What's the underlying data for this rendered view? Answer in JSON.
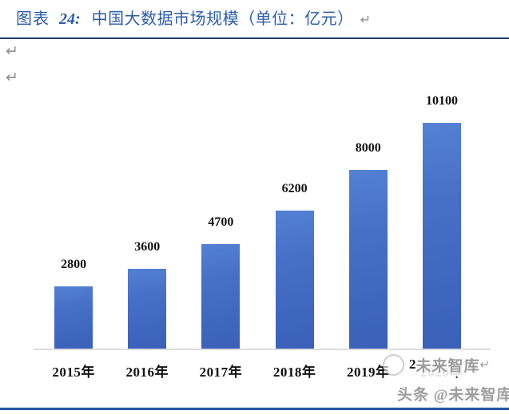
{
  "title": {
    "prefix": "图表",
    "number": "24:",
    "text": "中国大数据市场规模（单位：亿元）",
    "return_mark": "↵"
  },
  "paragraph_marks": {
    "first": "↵",
    "second": "↵"
  },
  "chart_data": {
    "type": "bar",
    "title": "中国大数据市场规模",
    "unit": "亿元",
    "categories": [
      "2015年",
      "2016年",
      "2017年",
      "2018年",
      "2019年",
      "2020年"
    ],
    "values": [
      2800,
      3600,
      4700,
      6200,
      8000,
      10100
    ],
    "data_labels": [
      "2800",
      "3600",
      "4700",
      "6200",
      "8000",
      "10100"
    ],
    "ylim": [
      0,
      10100
    ],
    "gridlines": false,
    "legend": "none",
    "bar_color": "#4472c4",
    "axis_color": "#dcdcdc"
  },
  "watermarks": {
    "overlay": {
      "year_fragment": "2",
      "text": "未来智库",
      "return_mark": "↵"
    },
    "bottom": "头条 @未来智库"
  },
  "colors": {
    "title_blue": "#2c5ca8",
    "top_rule": "#1d3a63",
    "bottom_rule": "#2456a4"
  }
}
